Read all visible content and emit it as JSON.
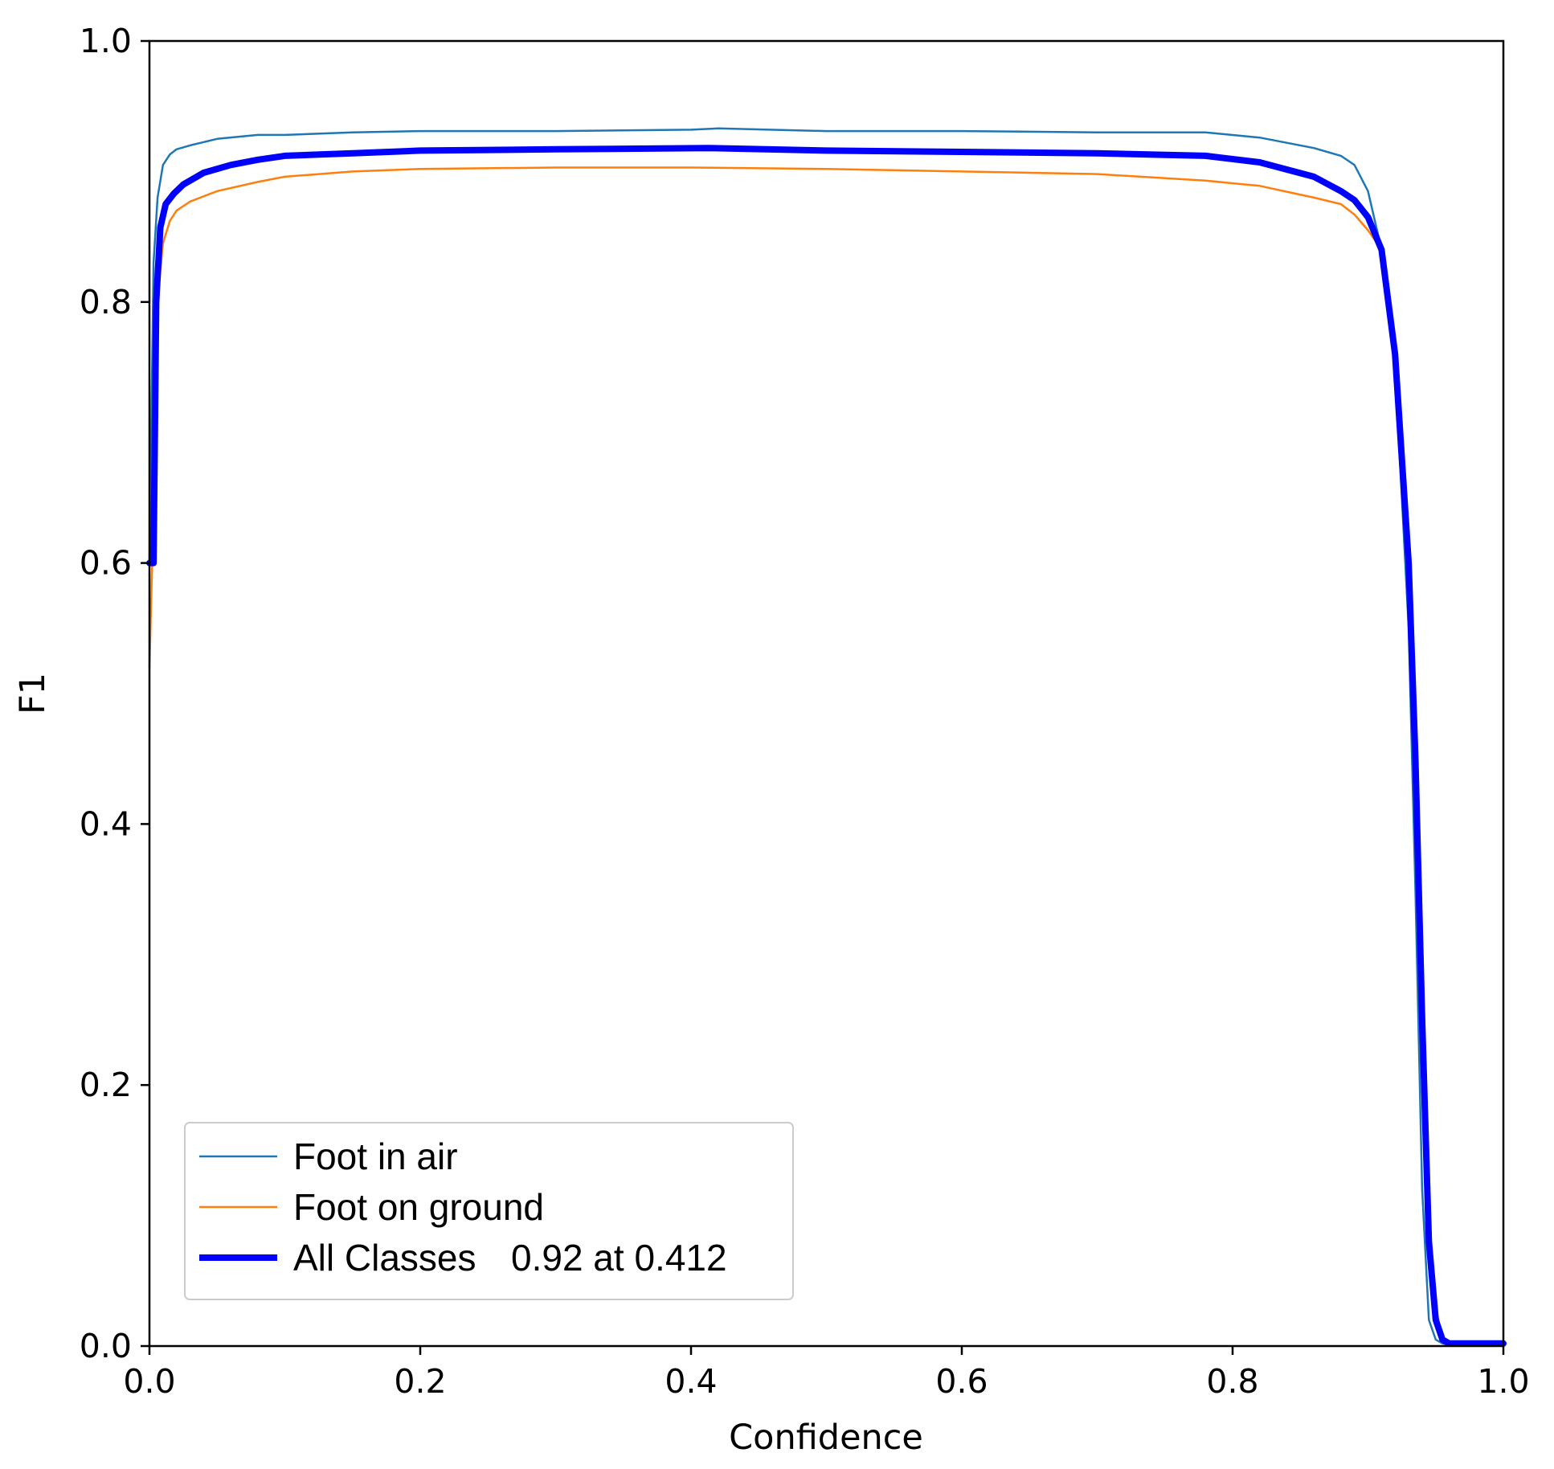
{
  "chart_data": {
    "type": "line",
    "title": "",
    "xlabel": "Confidence",
    "ylabel": "F1",
    "xlim": [
      0.0,
      1.0
    ],
    "ylim": [
      0.0,
      1.0
    ],
    "xticks": [
      "0.0",
      "0.2",
      "0.4",
      "0.6",
      "0.8",
      "1.0"
    ],
    "yticks": [
      "0.0",
      "0.2",
      "0.4",
      "0.6",
      "0.8",
      "1.0"
    ],
    "grid": false,
    "legend_position": "lower-left",
    "series": [
      {
        "name": "Foot in air",
        "color": "#1f77b4",
        "x": [
          0.0,
          0.003,
          0.006,
          0.01,
          0.015,
          0.02,
          0.03,
          0.05,
          0.08,
          0.1,
          0.15,
          0.2,
          0.3,
          0.4,
          0.42,
          0.5,
          0.6,
          0.7,
          0.78,
          0.82,
          0.86,
          0.88,
          0.89,
          0.9,
          0.91,
          0.92,
          0.93,
          0.935,
          0.94,
          0.945,
          0.95,
          0.955,
          0.96,
          1.0
        ],
        "y": [
          0.6,
          0.83,
          0.88,
          0.905,
          0.913,
          0.917,
          0.92,
          0.925,
          0.928,
          0.928,
          0.93,
          0.931,
          0.931,
          0.932,
          0.933,
          0.931,
          0.931,
          0.93,
          0.93,
          0.926,
          0.918,
          0.912,
          0.905,
          0.885,
          0.84,
          0.75,
          0.55,
          0.35,
          0.12,
          0.02,
          0.005,
          0.002,
          0.001,
          0.001
        ]
      },
      {
        "name": "Foot on ground",
        "color": "#ff7f0e",
        "x": [
          0.0,
          0.002,
          0.005,
          0.01,
          0.015,
          0.02,
          0.03,
          0.05,
          0.08,
          0.1,
          0.15,
          0.2,
          0.3,
          0.4,
          0.5,
          0.6,
          0.7,
          0.78,
          0.82,
          0.86,
          0.88,
          0.89,
          0.9,
          0.91,
          0.92,
          0.93,
          0.935,
          0.94,
          0.945,
          0.95,
          0.955,
          0.96,
          1.0
        ],
        "y": [
          0.52,
          0.6,
          0.79,
          0.845,
          0.862,
          0.87,
          0.877,
          0.885,
          0.892,
          0.896,
          0.9,
          0.902,
          0.903,
          0.903,
          0.902,
          0.9,
          0.898,
          0.893,
          0.889,
          0.88,
          0.875,
          0.867,
          0.855,
          0.84,
          0.76,
          0.6,
          0.45,
          0.25,
          0.1,
          0.03,
          0.005,
          0.002,
          0.002
        ]
      },
      {
        "name": "All Classes 0.92 at 0.412",
        "color": "#0000ff",
        "x": [
          0.0,
          0.003,
          0.005,
          0.008,
          0.012,
          0.018,
          0.025,
          0.04,
          0.06,
          0.08,
          0.1,
          0.15,
          0.2,
          0.3,
          0.412,
          0.5,
          0.6,
          0.7,
          0.78,
          0.82,
          0.86,
          0.88,
          0.89,
          0.9,
          0.91,
          0.92,
          0.93,
          0.935,
          0.94,
          0.945,
          0.95,
          0.955,
          0.96,
          1.0
        ],
        "y": [
          0.6,
          0.6,
          0.8,
          0.857,
          0.875,
          0.883,
          0.89,
          0.899,
          0.905,
          0.909,
          0.912,
          0.914,
          0.916,
          0.917,
          0.918,
          0.916,
          0.915,
          0.914,
          0.912,
          0.907,
          0.896,
          0.885,
          0.878,
          0.865,
          0.84,
          0.76,
          0.6,
          0.45,
          0.25,
          0.08,
          0.02,
          0.005,
          0.002,
          0.002
        ]
      }
    ],
    "legend": [
      {
        "label": "Foot in air",
        "extra": ""
      },
      {
        "label": "Foot on ground",
        "extra": ""
      },
      {
        "label": "All Classes",
        "extra": "0.92 at 0.412"
      }
    ]
  }
}
